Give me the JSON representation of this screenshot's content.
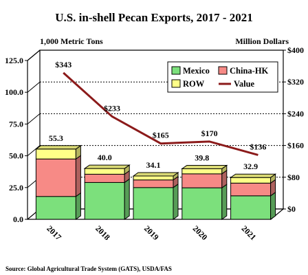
{
  "chart_data": {
    "type": "bar",
    "title": "U.S. in-shell Pecan Exports, 2017 - 2021",
    "left_unit": "1,000 Metric Tons",
    "right_unit": "Million Dollars",
    "categories": [
      "2017",
      "2018",
      "2019",
      "2020",
      "2021"
    ],
    "stacked": true,
    "series": [
      {
        "name": "Mexico",
        "values": [
          18.0,
          29.0,
          25.0,
          24.8,
          18.5
        ],
        "color": "#7CE07C"
      },
      {
        "name": "China-HK",
        "values": [
          29.5,
          6.5,
          6.0,
          11.0,
          10.0
        ],
        "color": "#F78A86"
      },
      {
        "name": "ROW",
        "values": [
          7.8,
          4.5,
          3.1,
          4.0,
          4.4
        ],
        "color": "#FFFF88"
      }
    ],
    "totals": [
      "55.3",
      "40.0",
      "34.1",
      "39.8",
      "32.9"
    ],
    "line_series": {
      "name": "Value",
      "values": [
        343,
        233,
        165,
        170,
        136
      ],
      "labels": [
        "$343",
        "$233",
        "$165",
        "$170",
        "$136"
      ],
      "color": "#8B1A1A"
    },
    "left_ticks": [
      "0.0",
      "25.0",
      "50.0",
      "75.0",
      "100.0",
      "125.0"
    ],
    "right_ticks": [
      "$0",
      "$80",
      "$160",
      "$240",
      "$320",
      "$400"
    ],
    "ylim_left": [
      0,
      125
    ],
    "ylim_right": [
      0,
      400
    ],
    "legend_position": "top-right",
    "grid": true
  },
  "source": "Source: Global Agricultural Trade System (GATS), USDA/FAS"
}
